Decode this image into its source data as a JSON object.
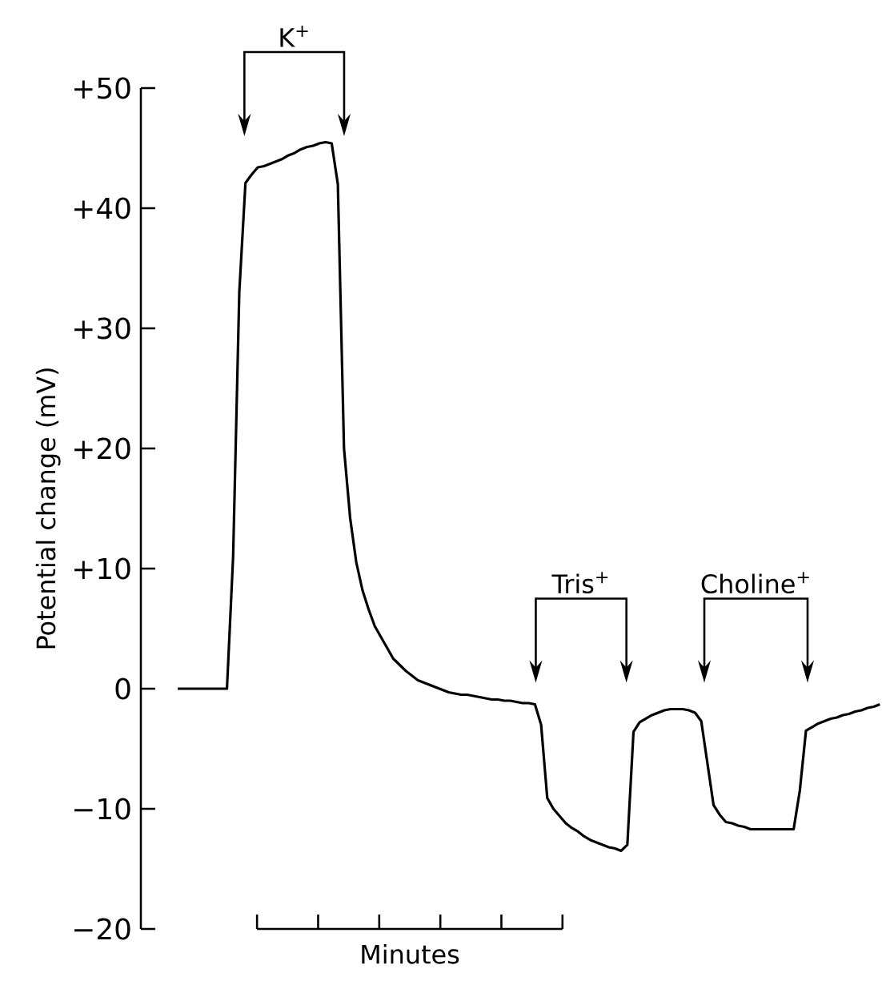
{
  "chart_data": {
    "type": "line",
    "xlabel": "Minutes",
    "ylabel": "Potential change (mV)",
    "ylim": [
      -20,
      50
    ],
    "yticks": [
      {
        "value": 50,
        "label": "+50"
      },
      {
        "value": 40,
        "label": "+40"
      },
      {
        "value": 30,
        "label": "+30"
      },
      {
        "value": 20,
        "label": "+20"
      },
      {
        "value": 10,
        "label": "+10"
      },
      {
        "value": 0,
        "label": "0"
      },
      {
        "value": -10,
        "label": "−10"
      },
      {
        "value": -20,
        "label": "−20"
      }
    ],
    "categories": [
      null,
      null,
      null,
      null,
      null,
      null,
      null,
      null,
      null,
      null,
      null,
      null,
      null,
      null,
      null,
      null,
      null,
      null,
      null,
      null,
      null,
      null,
      null,
      null,
      null,
      null,
      null,
      null,
      null,
      null,
      null,
      null,
      null,
      null,
      null,
      null,
      null,
      null,
      null,
      null,
      null,
      null,
      null,
      null,
      null,
      null,
      null,
      null,
      null,
      null,
      null,
      null,
      null,
      null,
      null,
      null,
      null,
      null,
      null,
      null,
      null,
      null,
      null,
      null,
      null,
      null,
      null,
      null,
      null,
      null,
      null,
      null,
      null,
      null,
      null,
      null,
      null,
      null,
      null,
      null,
      null,
      null,
      null,
      null,
      null,
      null,
      null,
      null,
      null,
      null,
      null,
      null,
      null,
      null,
      null,
      null,
      null,
      null,
      null,
      null,
      null,
      null,
      null,
      null,
      null,
      null,
      null,
      null,
      null,
      null,
      null,
      null,
      null,
      null,
      null
    ],
    "series": [
      {
        "color": "#000000",
        "values": [
          0,
          0,
          0,
          0,
          0,
          0,
          0,
          0,
          0,
          11,
          33,
          42.1,
          42.8,
          43.4,
          43.5,
          43.7,
          43.9,
          44.1,
          44.4,
          44.6,
          44.9,
          45.1,
          45.2,
          45.4,
          45.5,
          45.4,
          42,
          20,
          14.2,
          10.5,
          8.2,
          6.6,
          5.2,
          4.3,
          3.4,
          2.5,
          2.0,
          1.5,
          1.1,
          0.7,
          0.5,
          0.3,
          0.1,
          -0.1,
          -0.3,
          -0.4,
          -0.5,
          -0.5,
          -0.6,
          -0.7,
          -0.8,
          -0.9,
          -0.9,
          -1.0,
          -1.0,
          -1.1,
          -1.2,
          -1.2,
          -1.3,
          -3,
          -9.1,
          -10,
          -10.6,
          -11.2,
          -11.6,
          -11.9,
          -12.3,
          -12.6,
          -12.8,
          -13,
          -13.2,
          -13.3,
          -13.5,
          -13,
          -3.6,
          -2.8,
          -2.5,
          -2.2,
          -2.0,
          -1.8,
          -1.7,
          -1.7,
          -1.7,
          -1.8,
          -2.0,
          -2.7,
          -6.2,
          -9.7,
          -10.5,
          -11.1,
          -11.2,
          -11.4,
          -11.5,
          -11.7,
          -11.7,
          -11.7,
          -11.7,
          -11.7,
          -11.7,
          -11.7,
          -11.7,
          -8.5,
          -3.5,
          -3.2,
          -2.9,
          -2.7,
          -2.5,
          -2.4,
          -2.2,
          -2.1,
          -1.9,
          -1.8,
          -1.6,
          -1.5,
          -1.3
        ]
      }
    ],
    "annotations": [
      "K$^{+}$",
      "Tris$^{+}$",
      "Choline$^{+}$"
    ]
  }
}
